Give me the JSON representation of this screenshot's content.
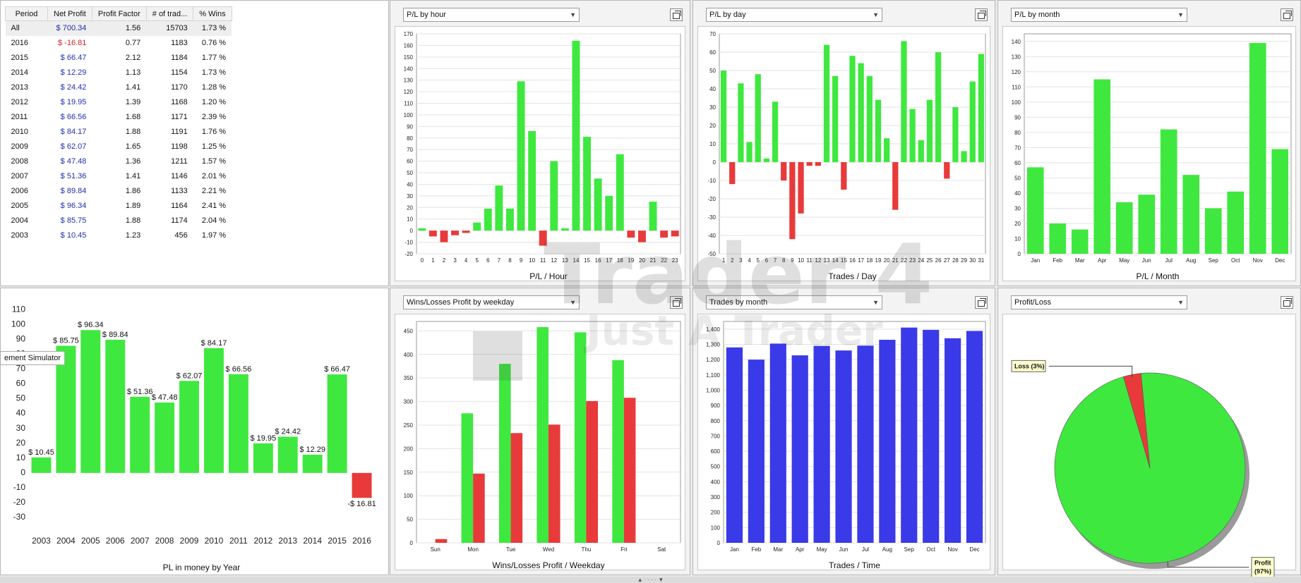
{
  "table": {
    "headers": [
      "Period",
      "Net Profit",
      "Profit Factor",
      "# of trad...",
      "% Wins"
    ],
    "rows": [
      {
        "period": "All",
        "net": "$ 700.34",
        "pf": "1.56",
        "trades": "15703",
        "wins": "1.73 %",
        "neg": false
      },
      {
        "period": "2016",
        "net": "$ -16.81",
        "pf": "0.77",
        "trades": "1183",
        "wins": "0.76 %",
        "neg": true
      },
      {
        "period": "2015",
        "net": "$ 66.47",
        "pf": "2.12",
        "trades": "1184",
        "wins": "1.77 %",
        "neg": false
      },
      {
        "period": "2014",
        "net": "$ 12.29",
        "pf": "1.13",
        "trades": "1154",
        "wins": "1.73 %",
        "neg": false
      },
      {
        "period": "2013",
        "net": "$ 24.42",
        "pf": "1.41",
        "trades": "1170",
        "wins": "1.28 %",
        "neg": false
      },
      {
        "period": "2012",
        "net": "$ 19.95",
        "pf": "1.39",
        "trades": "1168",
        "wins": "1.20 %",
        "neg": false
      },
      {
        "period": "2011",
        "net": "$ 66.56",
        "pf": "1.68",
        "trades": "1171",
        "wins": "2.39 %",
        "neg": false
      },
      {
        "period": "2010",
        "net": "$ 84.17",
        "pf": "1.88",
        "trades": "1191",
        "wins": "1.76 %",
        "neg": false
      },
      {
        "period": "2009",
        "net": "$ 62.07",
        "pf": "1.65",
        "trades": "1198",
        "wins": "1.25 %",
        "neg": false
      },
      {
        "period": "2008",
        "net": "$ 47.48",
        "pf": "1.36",
        "trades": "1211",
        "wins": "1.57 %",
        "neg": false
      },
      {
        "period": "2007",
        "net": "$ 51.36",
        "pf": "1.41",
        "trades": "1146",
        "wins": "2.01 %",
        "neg": false
      },
      {
        "period": "2006",
        "net": "$ 89.84",
        "pf": "1.86",
        "trades": "1133",
        "wins": "2.21 %",
        "neg": false
      },
      {
        "period": "2005",
        "net": "$ 96.34",
        "pf": "1.89",
        "trades": "1164",
        "wins": "2.41 %",
        "neg": false
      },
      {
        "period": "2004",
        "net": "$ 85.75",
        "pf": "1.88",
        "trades": "1174",
        "wins": "2.04 %",
        "neg": false
      },
      {
        "period": "2003",
        "net": "$ 10.45",
        "pf": "1.23",
        "trades": "456",
        "wins": "1.97 %",
        "neg": false
      }
    ]
  },
  "tooltip": "ement Simulator",
  "watermark": {
    "line1": "Trader 4",
    "line2": "Just A Trader"
  },
  "colors": {
    "green": "#3fe83f",
    "red": "#e83a3a",
    "blue": "#3a3ae8"
  },
  "chart_data": [
    {
      "id": "hour",
      "type": "bar",
      "dropdown": "P/L by hour",
      "xlabel": "P/L / Hour",
      "ylabel": "",
      "categories": [
        "0",
        "1",
        "2",
        "3",
        "4",
        "5",
        "6",
        "7",
        "8",
        "9",
        "10",
        "11",
        "12",
        "13",
        "14",
        "15",
        "16",
        "17",
        "18",
        "19",
        "20",
        "21",
        "22",
        "23"
      ],
      "values": [
        2,
        -5,
        -10,
        -4,
        -2,
        7,
        19,
        39,
        19,
        129,
        86,
        -13,
        60,
        2,
        164,
        81,
        45,
        30,
        66,
        -6,
        -10,
        25,
        -6,
        -5
      ],
      "ylim": [
        -20,
        170
      ],
      "yticks": [
        -20,
        -10,
        0,
        10,
        20,
        30,
        40,
        50,
        60,
        70,
        80,
        90,
        100,
        110,
        120,
        130,
        140,
        150,
        160,
        170
      ],
      "grid": true
    },
    {
      "id": "day",
      "type": "bar",
      "dropdown": "P/L by day",
      "xlabel": "Trades / Day",
      "ylabel": "",
      "categories": [
        "1",
        "2",
        "3",
        "4",
        "5",
        "6",
        "7",
        "8",
        "9",
        "10",
        "11",
        "12",
        "13",
        "14",
        "15",
        "16",
        "17",
        "18",
        "19",
        "20",
        "21",
        "22",
        "23",
        "24",
        "25",
        "26",
        "27",
        "28",
        "29",
        "30",
        "31"
      ],
      "values": [
        50,
        -12,
        43,
        11,
        48,
        2,
        33,
        -10,
        -42,
        -28,
        -2,
        -2,
        64,
        47,
        -15,
        58,
        54,
        47,
        34,
        13,
        -26,
        66,
        29,
        12,
        34,
        60,
        -9,
        30,
        6,
        44,
        59
      ],
      "ylim": [
        -50,
        70
      ],
      "yticks": [
        -50,
        -40,
        -30,
        -20,
        -10,
        0,
        10,
        20,
        30,
        40,
        50,
        60,
        70
      ],
      "grid": true
    },
    {
      "id": "month",
      "type": "bar",
      "dropdown": "P/L by month",
      "xlabel": "P/L / Month",
      "ylabel": "",
      "categories": [
        "Jan",
        "Feb",
        "Mar",
        "Apr",
        "May",
        "Jun",
        "Jul",
        "Aug",
        "Sep",
        "Oct",
        "Nov",
        "Dec"
      ],
      "values": [
        57,
        20,
        16,
        115,
        34,
        39,
        82,
        52,
        30,
        41,
        139,
        69
      ],
      "ylim": [
        0,
        145
      ],
      "yticks": [
        0,
        10,
        20,
        30,
        40,
        50,
        60,
        70,
        80,
        90,
        100,
        110,
        120,
        130,
        140
      ],
      "grid": true
    },
    {
      "id": "year",
      "type": "bar",
      "dropdown": "",
      "xlabel": "PL in money by Year",
      "ylabel": "",
      "categories": [
        "2003",
        "2004",
        "2005",
        "2006",
        "2007",
        "2008",
        "2009",
        "2010",
        "2011",
        "2012",
        "2013",
        "2014",
        "2015",
        "2016"
      ],
      "values": [
        10.45,
        85.75,
        96.34,
        89.84,
        51.36,
        47.48,
        62.07,
        84.17,
        66.56,
        19.95,
        24.42,
        12.29,
        66.47,
        -16.81
      ],
      "labels": [
        "$ 10.45",
        "$ 85.75",
        "$ 96.34",
        "$ 89.84",
        "$ 51.36",
        "$ 47.48",
        "$ 62.07",
        "$ 84.17",
        "$ 66.56",
        "$ 19.95",
        "$ 24.42",
        "$ 12.29",
        "$ 66.47",
        "-$ 16.81"
      ],
      "ylim": [
        -40,
        115
      ],
      "yticks": [
        -30,
        -20,
        -10,
        0,
        10,
        20,
        30,
        40,
        50,
        60,
        70,
        80,
        90,
        100,
        110
      ],
      "grid": false
    },
    {
      "id": "weekday",
      "type": "bar",
      "dropdown": "Wins/Losses Profit by weekday",
      "xlabel": "Wins/Losses Profit / Weekday",
      "ylabel": "",
      "categories": [
        "Sun",
        "Mon",
        "Tue",
        "Wed",
        "Thu",
        "Fri",
        "Sat"
      ],
      "series": [
        {
          "values": [
            0,
            275,
            380,
            458,
            447,
            388,
            0
          ]
        },
        {
          "values": [
            8,
            147,
            233,
            251,
            301,
            308,
            0
          ]
        }
      ],
      "ylim": [
        0,
        470
      ],
      "yticks": [
        0,
        50,
        100,
        150,
        200,
        250,
        300,
        350,
        400,
        450
      ],
      "grid": true
    },
    {
      "id": "trades",
      "type": "bar",
      "dropdown": "Trades by month",
      "xlabel": "Trades / Time",
      "ylabel": "",
      "categories": [
        "Jan",
        "Feb",
        "Mar",
        "Apr",
        "May",
        "Jun",
        "Jul",
        "Aug",
        "Sep",
        "Oct",
        "Nov",
        "Dec"
      ],
      "values": [
        1280,
        1200,
        1305,
        1228,
        1290,
        1260,
        1292,
        1330,
        1410,
        1395,
        1340,
        1388
      ],
      "ylim": [
        0,
        1450
      ],
      "yticks": [
        0,
        100,
        200,
        300,
        400,
        500,
        600,
        700,
        800,
        900,
        1000,
        1100,
        1200,
        1300,
        1400
      ],
      "yticklabels": [
        "0",
        "100",
        "200",
        "300",
        "400",
        "500",
        "600",
        "700",
        "800",
        "900",
        "1,000",
        "1,100",
        "1,200",
        "1,300",
        "1,400"
      ],
      "grid": true
    },
    {
      "id": "pie",
      "type": "pie",
      "dropdown": "Profit/Loss",
      "slices": [
        {
          "name": "Profit",
          "label": "Profit (97%)",
          "value": 97
        },
        {
          "name": "Loss",
          "label": "Loss (3%)",
          "value": 3
        }
      ]
    }
  ]
}
